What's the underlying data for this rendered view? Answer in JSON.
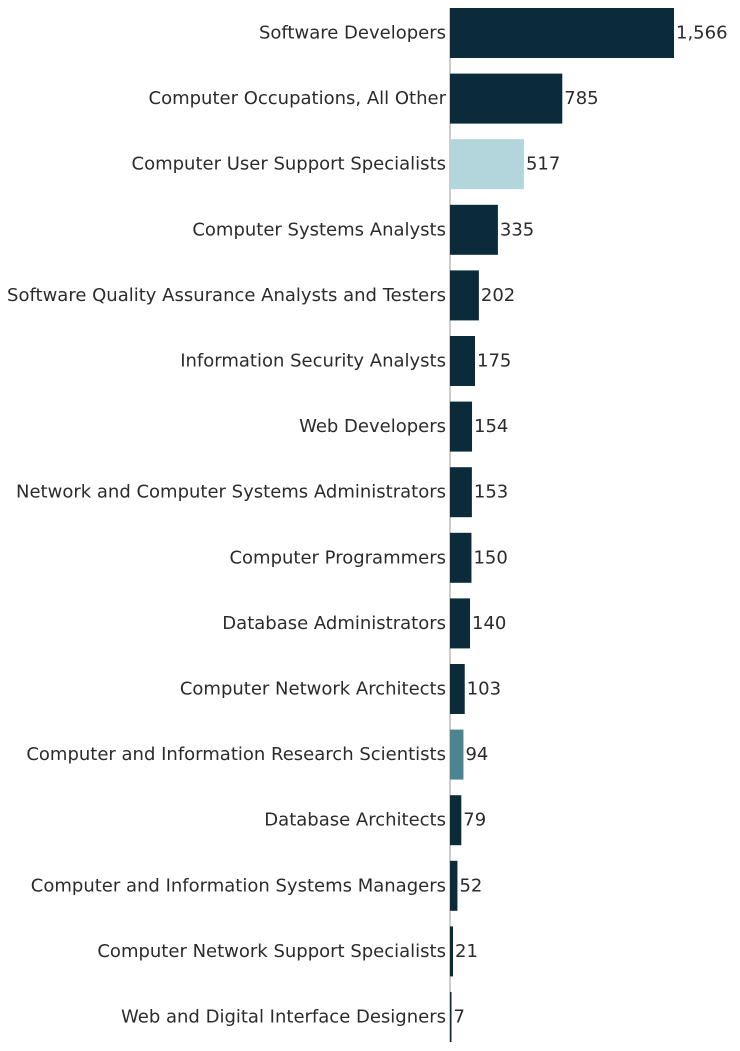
{
  "chart_data": {
    "type": "bar",
    "orientation": "horizontal",
    "title": "",
    "xlabel": "",
    "ylabel": "",
    "grid": false,
    "legend": "none",
    "xlim": [
      0,
      1566
    ],
    "categories": [
      "Software Developers",
      "Computer Occupations, All Other",
      "Computer User Support Specialists",
      "Computer Systems Analysts",
      "Software Quality Assurance Analysts and Testers",
      "Information Security Analysts",
      "Web Developers",
      "Network and Computer Systems Administrators",
      "Computer Programmers",
      "Database Administrators",
      "Computer Network Architects",
      "Computer and Information Research Scientists",
      "Database Architects",
      "Computer and Information Systems Managers",
      "Computer Network Support Specialists",
      "Web and Digital Interface Designers"
    ],
    "values": [
      1566,
      785,
      517,
      335,
      202,
      175,
      154,
      153,
      150,
      140,
      103,
      94,
      79,
      52,
      21,
      7
    ],
    "value_labels": [
      "1,566",
      "785",
      "517",
      "335",
      "202",
      "175",
      "154",
      "153",
      "150",
      "140",
      "103",
      "94",
      "79",
      "52",
      "21",
      "7"
    ],
    "colors": [
      "#0b2b3a",
      "#0b2b3a",
      "#b3d6dc",
      "#0b2b3a",
      "#0b2b3a",
      "#0b2b3a",
      "#0b2b3a",
      "#0b2b3a",
      "#0b2b3a",
      "#0b2b3a",
      "#0b2b3a",
      "#4a8590",
      "#0b2b3a",
      "#0b2b3a",
      "#0b2b3a",
      "#0b2b3a"
    ]
  },
  "colors": {
    "axis_line": "#9a9a9a",
    "text": "#2b2b2b"
  }
}
